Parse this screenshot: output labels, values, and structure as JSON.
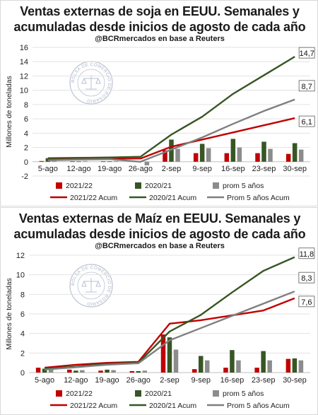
{
  "chart_data": [
    {
      "type": "bar",
      "title_line1": "Ventas externas de soja en EEUU. Semanales y",
      "title_line2": "acumuladas desde inicios de agosto de cada año",
      "subtitle": "@BCRmercados en base a Reuters",
      "ylabel": "Millones de toneladas",
      "ylim": [
        -2,
        16
      ],
      "yticks": [
        -2,
        0,
        2,
        4,
        6,
        8,
        10,
        12,
        14,
        16
      ],
      "categories": [
        "5-ago",
        "12-ago",
        "19-ago",
        "26-ago",
        "2-sep",
        "9-sep",
        "16-sep",
        "23-sep",
        "30-sep"
      ],
      "bar_series": [
        {
          "name": "2021/22",
          "color": "#c00000",
          "values": [
            0.1,
            0.05,
            0.05,
            0.05,
            1.6,
            1.2,
            1.2,
            1.2,
            1.1
          ]
        },
        {
          "name": "2020/21",
          "color": "#375623",
          "values": [
            0.5,
            0.05,
            0.05,
            0.1,
            3.1,
            2.5,
            3.2,
            2.8,
            2.6
          ]
        },
        {
          "name": "prom 5 años",
          "color": "#8c8c8c",
          "values": [
            0.1,
            0.1,
            0.1,
            -0.5,
            1.8,
            1.9,
            2.0,
            1.8,
            1.7
          ]
        }
      ],
      "line_series": [
        {
          "name": "2021/22 Acum",
          "color": "#c00000",
          "values": [
            0.3,
            0.35,
            0.4,
            0.45,
            2.1,
            3.1,
            4.1,
            5.1,
            6.1
          ]
        },
        {
          "name": "2020/21 Acum",
          "color": "#375623",
          "values": [
            0.5,
            0.55,
            0.6,
            0.7,
            3.8,
            6.3,
            9.5,
            12.1,
            14.7
          ]
        },
        {
          "name": "Prom 5 años Acum",
          "color": "#7f7f7f",
          "values": [
            0.2,
            0.3,
            0.35,
            0.0,
            1.7,
            3.4,
            5.3,
            7.1,
            8.7
          ]
        }
      ],
      "end_labels": [
        "14,7",
        "8,7",
        "6,1"
      ],
      "legend": [
        "2021/22",
        "2020/21",
        "prom 5 años",
        "2021/22 Acum",
        "2020/21 Acum",
        "Prom 5 años Acum"
      ],
      "watermark_text": "BOLSA DE COMERCIO DE ROSARIO"
    },
    {
      "type": "bar",
      "title_line1": "Ventas externas de Maíz en EEUU. Semanales y",
      "title_line2": "acumuladas desde inicios de agosto de cada año",
      "subtitle": "@BCRmercados en base a Reuters",
      "ylabel": "Millones de toneladas",
      "ylim": [
        0,
        12
      ],
      "yticks": [
        0,
        2,
        4,
        6,
        8,
        10,
        12
      ],
      "categories": [
        "5-ago",
        "12-ago",
        "19-ago",
        "26-ago",
        "2-sep",
        "9-sep",
        "16-sep",
        "23-sep",
        "30-sep"
      ],
      "bar_series": [
        {
          "name": "2021/22",
          "color": "#c00000",
          "values": [
            0.5,
            0.3,
            0.2,
            0.15,
            3.9,
            0.35,
            0.5,
            0.5,
            1.4
          ]
        },
        {
          "name": "2020/21",
          "color": "#375623",
          "values": [
            0.4,
            0.2,
            0.3,
            0.15,
            3.6,
            1.7,
            2.3,
            2.2,
            1.45
          ]
        },
        {
          "name": "prom 5 años",
          "color": "#8c8c8c",
          "values": [
            0.35,
            0.25,
            0.25,
            0.2,
            2.35,
            1.25,
            1.25,
            1.25,
            1.25
          ]
        }
      ],
      "line_series": [
        {
          "name": "2021/22 Acum",
          "color": "#c00000",
          "values": [
            0.5,
            0.8,
            1.0,
            1.1,
            5.0,
            5.35,
            5.85,
            6.35,
            7.6
          ]
        },
        {
          "name": "2020/21 Acum",
          "color": "#375623",
          "values": [
            0.4,
            0.6,
            0.9,
            1.0,
            4.2,
            5.9,
            8.2,
            10.4,
            11.8
          ]
        },
        {
          "name": "Prom 5 años Acum",
          "color": "#7f7f7f",
          "values": [
            0.3,
            0.55,
            0.8,
            0.95,
            3.3,
            4.55,
            5.8,
            7.05,
            8.3
          ]
        }
      ],
      "end_labels": [
        "11,8",
        "8,3",
        "7,6"
      ],
      "legend": [
        "2021/22",
        "2020/21",
        "prom 5 años",
        "2021/22 Acum",
        "2020/21 Acum",
        "Prom 5 años Acum"
      ],
      "watermark_text": "BOLSA DE COMERCIO DE ROSARIO"
    }
  ]
}
